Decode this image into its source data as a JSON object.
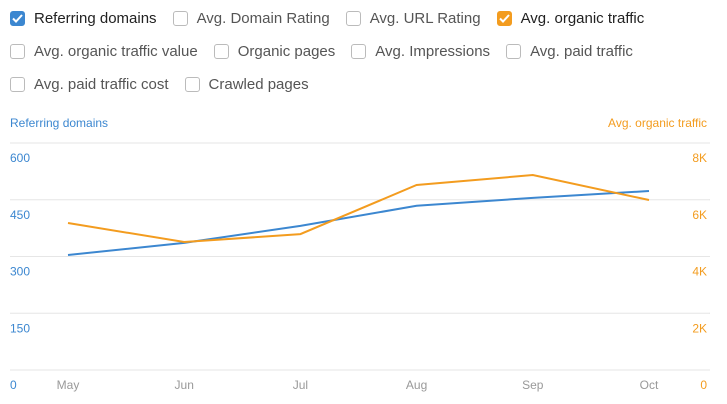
{
  "checkboxes": [
    {
      "label": "Referring domains",
      "checked": true,
      "color": "#3c87d0"
    },
    {
      "label": "Avg. Domain Rating",
      "checked": false
    },
    {
      "label": "Avg. URL Rating",
      "checked": false
    },
    {
      "label": "Avg. organic traffic",
      "checked": true,
      "color": "#f39c1f"
    },
    {
      "label": "Avg. organic traffic value",
      "checked": false
    },
    {
      "label": "Organic pages",
      "checked": false
    },
    {
      "label": "Avg. Impressions",
      "checked": false
    },
    {
      "label": "Avg. paid traffic",
      "checked": false
    },
    {
      "label": "Avg. paid traffic cost",
      "checked": false
    },
    {
      "label": "Crawled pages",
      "checked": false
    }
  ],
  "chart_data": {
    "type": "line",
    "y_label": "Referring domains",
    "y2_label": "Avg. organic traffic",
    "categories": [
      "May",
      "Jun",
      "Jul",
      "Aug",
      "Sep",
      "Oct"
    ],
    "series": [
      {
        "name": "Referring domains",
        "color": "#3c87d0",
        "values": [
          304,
          336,
          381,
          434,
          455,
          473
        ]
      },
      {
        "name": "Avg. organic traffic",
        "color": "#f39c1f",
        "axis": "y2",
        "values": [
          5180,
          4510,
          4790,
          6520,
          6870,
          5990
        ]
      }
    ],
    "ylim": [
      0,
      600
    ],
    "yticks": [
      0,
      150,
      300,
      450,
      600
    ],
    "y2lim": [
      0,
      8000
    ],
    "y2ticks": [
      0,
      {
        "value": 2000,
        "label": "2K"
      },
      {
        "value": 4000,
        "label": "4K"
      },
      {
        "value": 6000,
        "label": "6K"
      },
      {
        "value": 8000,
        "label": "8K"
      }
    ],
    "grid": true
  }
}
